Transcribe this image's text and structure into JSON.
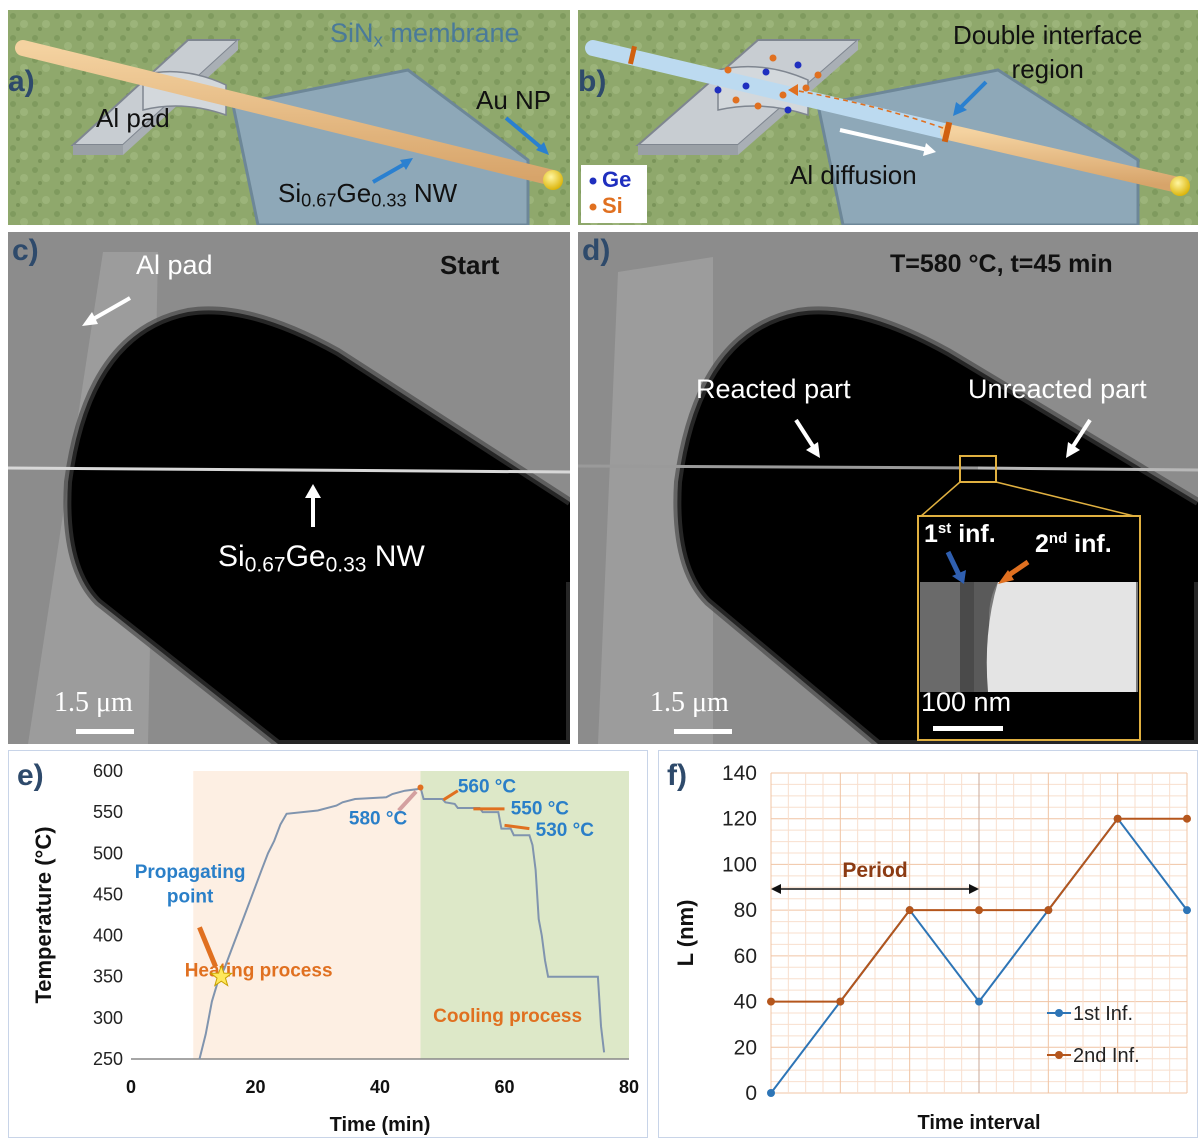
{
  "panel_a": {
    "label": "a)",
    "membrane": "SiN",
    "membrane_sub": "x",
    "membrane_tail": " membrane",
    "al_pad": "Al pad",
    "au_np": "Au NP",
    "nw_si": "Si",
    "nw_si_sub": "0.67",
    "nw_ge": "Ge",
    "nw_ge_sub": "0.33",
    "nw_tail": " NW"
  },
  "panel_b": {
    "label": "b)",
    "double_interface_1": "Double interface",
    "double_interface_2": "region",
    "al_diffusion": "Al diffusion",
    "legend_ge": "Ge",
    "legend_si": "Si",
    "colors": {
      "ge": "#1f2fbf",
      "si": "#e07020"
    }
  },
  "panel_c": {
    "label": "c)",
    "al_pad": "Al pad",
    "start": "Start",
    "nw_si": "Si",
    "nw_si_sub": "0.67",
    "nw_ge": "Ge",
    "nw_ge_sub": "0.33",
    "nw_tail": " NW",
    "scale": "1.5 μm"
  },
  "panel_d": {
    "label": "d)",
    "condition": "T=580 °C, t=45 min",
    "reacted": "Reacted part",
    "unreacted": "Unreacted part",
    "inf1_num": "1",
    "inf1_sup": "st",
    "inf1_tail": " inf.",
    "inf2_num": "2",
    "inf2_sup": "nd",
    "inf2_tail": " inf.",
    "inset_scale": "100 nm",
    "scale": "1.5 μm"
  },
  "chart_data": [
    {
      "type": "line",
      "panel": "e)",
      "xlabel": "Time (min)",
      "ylabel": "Temperature (°C)",
      "xlim": [
        0,
        80
      ],
      "ylim": [
        250,
        600
      ],
      "xticks": [
        "0",
        "20",
        "40",
        "60",
        "80"
      ],
      "yticks": [
        "250",
        "300",
        "350",
        "400",
        "450",
        "500",
        "550",
        "600"
      ],
      "regions": [
        {
          "label": "Heating process",
          "x": [
            10,
            46.5
          ],
          "color": "#fdefe3"
        },
        {
          "label": "Cooling process",
          "x": [
            46.5,
            80
          ],
          "color": "#dde8c8"
        }
      ],
      "series": [
        {
          "color": "#8094ae",
          "points": [
            [
              11,
              250
            ],
            [
              12,
              280
            ],
            [
              13,
              320
            ],
            [
              14,
              345
            ],
            [
              15,
              360
            ],
            [
              16,
              380
            ],
            [
              17,
              400
            ],
            [
              18,
              420
            ],
            [
              19,
              440
            ],
            [
              20,
              460
            ],
            [
              21,
              480
            ],
            [
              22,
              500
            ],
            [
              23,
              515
            ],
            [
              24,
              535
            ],
            [
              25,
              548
            ],
            [
              30,
              552
            ],
            [
              33,
              558
            ],
            [
              34,
              562
            ],
            [
              36,
              566
            ],
            [
              41,
              568
            ],
            [
              42,
              572
            ],
            [
              44,
              576
            ],
            [
              46,
              578
            ],
            [
              46.5,
              580
            ],
            [
              47,
              566
            ],
            [
              50,
              566
            ],
            [
              50.5,
              562
            ],
            [
              52,
              560
            ],
            [
              52.5,
              555
            ],
            [
              56,
              555
            ],
            [
              56.5,
              550
            ],
            [
              59,
              550
            ],
            [
              59.5,
              530
            ],
            [
              61,
              530
            ],
            [
              61.5,
              522
            ],
            [
              64,
              522
            ],
            [
              64.5,
              510
            ],
            [
              65,
              480
            ],
            [
              65.5,
              420
            ],
            [
              66,
              400
            ],
            [
              66.5,
              370
            ],
            [
              67,
              350
            ],
            [
              75,
              350
            ],
            [
              75.5,
              290
            ],
            [
              76,
              258
            ]
          ]
        }
      ],
      "annotations": [
        {
          "text": "580 °C",
          "x": 46.5,
          "y": 580,
          "arrow_color": "#d4a0a0"
        },
        {
          "text": "560 °C",
          "x": 51.5,
          "y": 562,
          "arrow_color": "#e07020"
        },
        {
          "text": "550 °C",
          "x": 55.5,
          "y": 552,
          "arrow_color": "#e07020"
        },
        {
          "text": "530 °C",
          "x": 60,
          "y": 530,
          "arrow_color": "#e07020"
        },
        {
          "text_lines": [
            "Propagating",
            "point"
          ],
          "x": 14.5,
          "y": 350,
          "marker": "star",
          "marker_color": "#ffe85c"
        }
      ],
      "label_color": "#2a7fc8"
    },
    {
      "type": "line",
      "panel": "f)",
      "xlabel": "Time interval",
      "ylabel": "L (nm)",
      "ylim": [
        0,
        140
      ],
      "yticks": [
        "0",
        "20",
        "40",
        "60",
        "80",
        "100",
        "120",
        "140"
      ],
      "x": [
        0,
        1,
        2,
        3,
        4,
        5,
        6
      ],
      "series": [
        {
          "name": "1st Inf.",
          "color": "#2e75b6",
          "values": [
            0,
            40,
            80,
            40,
            80,
            120,
            80
          ]
        },
        {
          "name": "2nd Inf.",
          "color": "#b5561c",
          "values": [
            40,
            40,
            80,
            80,
            80,
            120,
            120
          ]
        }
      ],
      "period_label": "Period",
      "period_range": [
        0,
        3
      ],
      "grid": true,
      "legend": "bottom-right"
    }
  ]
}
